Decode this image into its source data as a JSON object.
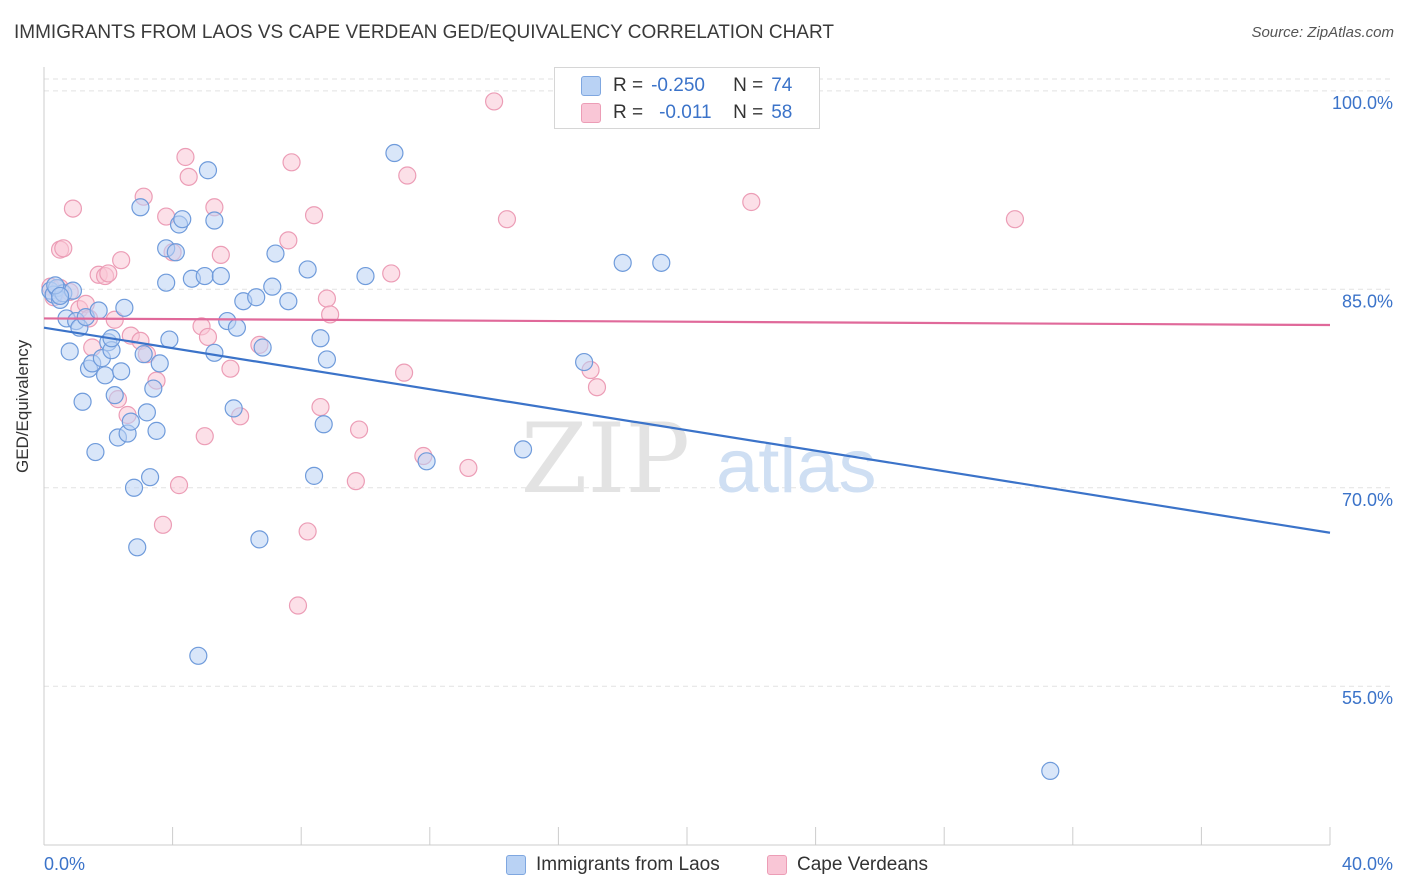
{
  "title": "IMMIGRANTS FROM LAOS VS CAPE VERDEAN GED/EQUIVALENCY CORRELATION CHART",
  "source": "Source: ZipAtlas.com",
  "watermark": {
    "zip": "ZIP",
    "atlas": "atlas"
  },
  "legend": {
    "r_label": "R =",
    "n_label": "N =",
    "rows": [
      {
        "r": "-0.250",
        "n": "74"
      },
      {
        "r": "-0.011",
        "n": "58"
      }
    ]
  },
  "bottom_legend": [
    "Immigrants from Laos",
    "Cape Verdeans"
  ],
  "chart_data": {
    "type": "scatter",
    "title": "IMMIGRANTS FROM LAOS VS CAPE VERDEAN GED/EQUIVALENCY CORRELATION CHART",
    "xlabel": "",
    "ylabel": "GED/Equivalency",
    "xlim": [
      0,
      40
    ],
    "ylim": [
      43,
      101.5
    ],
    "x_tick_labels": [
      "0.0%",
      "40.0%"
    ],
    "y_ticks": [
      55,
      70,
      85,
      100
    ],
    "y_tick_labels": [
      "55.0%",
      "70.0%",
      "85.0%",
      "100.0%"
    ],
    "grid": "horizontal dashed",
    "legend_position": "top-center",
    "colors": {
      "laos": "#3b73c9",
      "cape": "#e0699a",
      "laos_fill": "#b9d2f4",
      "cape_fill": "#f9c6d6"
    },
    "series": [
      {
        "name": "Immigrants from Laos",
        "r": -0.25,
        "n": 74,
        "trend": {
          "x": [
            0,
            40
          ],
          "y": [
            82.1,
            66.6
          ]
        },
        "points": [
          [
            0.2,
            84.9
          ],
          [
            0.3,
            84.6
          ],
          [
            0.4,
            85.1
          ],
          [
            0.5,
            84.2
          ],
          [
            0.6,
            84.7
          ],
          [
            0.7,
            82.8
          ],
          [
            0.8,
            80.3
          ],
          [
            0.9,
            84.9
          ],
          [
            1.0,
            82.6
          ],
          [
            1.1,
            82.1
          ],
          [
            1.2,
            76.5
          ],
          [
            1.3,
            82.9
          ],
          [
            1.4,
            79.0
          ],
          [
            1.5,
            79.4
          ],
          [
            1.6,
            72.7
          ],
          [
            1.7,
            83.4
          ],
          [
            1.8,
            79.8
          ],
          [
            1.9,
            78.5
          ],
          [
            2.0,
            81.0
          ],
          [
            2.1,
            80.4
          ],
          [
            2.2,
            77.0
          ],
          [
            2.3,
            73.8
          ],
          [
            2.4,
            78.8
          ],
          [
            2.5,
            83.6
          ],
          [
            2.6,
            74.1
          ],
          [
            2.7,
            75.0
          ],
          [
            2.8,
            70.0
          ],
          [
            2.9,
            65.5
          ],
          [
            3.0,
            91.2
          ],
          [
            3.1,
            80.1
          ],
          [
            3.2,
            75.7
          ],
          [
            3.3,
            70.8
          ],
          [
            3.4,
            77.5
          ],
          [
            3.5,
            74.3
          ],
          [
            3.6,
            79.4
          ],
          [
            3.8,
            88.1
          ],
          [
            3.8,
            85.5
          ],
          [
            3.9,
            81.2
          ],
          [
            4.1,
            87.8
          ],
          [
            4.2,
            89.9
          ],
          [
            4.3,
            90.3
          ],
          [
            4.6,
            85.8
          ],
          [
            4.8,
            57.3
          ],
          [
            5.0,
            86.0
          ],
          [
            5.1,
            94.0
          ],
          [
            5.3,
            80.2
          ],
          [
            5.3,
            90.2
          ],
          [
            5.5,
            86.0
          ],
          [
            5.7,
            82.6
          ],
          [
            5.9,
            76.0
          ],
          [
            6.0,
            82.1
          ],
          [
            6.2,
            84.1
          ],
          [
            6.6,
            84.4
          ],
          [
            6.8,
            80.6
          ],
          [
            7.1,
            85.2
          ],
          [
            7.2,
            87.7
          ],
          [
            7.6,
            84.1
          ],
          [
            8.2,
            86.5
          ],
          [
            8.4,
            70.9
          ],
          [
            8.6,
            81.3
          ],
          [
            8.7,
            74.8
          ],
          [
            8.8,
            79.7
          ],
          [
            10.0,
            86.0
          ],
          [
            10.9,
            95.3
          ],
          [
            11.9,
            72.0
          ],
          [
            14.9,
            72.9
          ],
          [
            16.8,
            79.5
          ],
          [
            18.0,
            87.0
          ],
          [
            19.2,
            87.0
          ],
          [
            31.3,
            48.6
          ],
          [
            0.35,
            85.3
          ],
          [
            2.1,
            81.3
          ],
          [
            6.7,
            66.1
          ],
          [
            0.5,
            84.5
          ]
        ]
      },
      {
        "name": "Cape Verdeans",
        "r": -0.011,
        "n": 58,
        "trend": {
          "x": [
            0,
            40
          ],
          "y": [
            82.8,
            82.3
          ]
        },
        "points": [
          [
            0.2,
            85.2
          ],
          [
            0.3,
            84.4
          ],
          [
            0.5,
            85.1
          ],
          [
            0.5,
            88.0
          ],
          [
            0.6,
            88.1
          ],
          [
            0.8,
            84.8
          ],
          [
            0.9,
            91.1
          ],
          [
            1.1,
            83.5
          ],
          [
            1.3,
            83.9
          ],
          [
            1.4,
            82.8
          ],
          [
            1.5,
            80.6
          ],
          [
            1.7,
            86.1
          ],
          [
            1.9,
            86.0
          ],
          [
            2.0,
            86.2
          ],
          [
            2.2,
            82.7
          ],
          [
            2.3,
            76.7
          ],
          [
            2.4,
            87.2
          ],
          [
            2.6,
            75.5
          ],
          [
            2.7,
            81.5
          ],
          [
            3.0,
            81.1
          ],
          [
            3.1,
            92.0
          ],
          [
            3.2,
            80.1
          ],
          [
            3.5,
            78.1
          ],
          [
            3.7,
            67.2
          ],
          [
            3.8,
            90.5
          ],
          [
            4.0,
            87.8
          ],
          [
            4.2,
            70.2
          ],
          [
            4.4,
            95.0
          ],
          [
            4.5,
            93.5
          ],
          [
            4.9,
            82.2
          ],
          [
            5.1,
            81.4
          ],
          [
            5.0,
            73.9
          ],
          [
            5.3,
            91.2
          ],
          [
            5.5,
            87.6
          ],
          [
            5.8,
            79.0
          ],
          [
            6.1,
            75.4
          ],
          [
            6.7,
            80.8
          ],
          [
            7.6,
            88.7
          ],
          [
            7.7,
            94.6
          ],
          [
            7.9,
            61.1
          ],
          [
            8.2,
            66.7
          ],
          [
            8.4,
            90.6
          ],
          [
            8.6,
            76.1
          ],
          [
            8.8,
            84.3
          ],
          [
            8.9,
            83.1
          ],
          [
            9.7,
            70.5
          ],
          [
            9.8,
            74.4
          ],
          [
            10.8,
            86.2
          ],
          [
            11.2,
            78.7
          ],
          [
            11.3,
            93.6
          ],
          [
            11.8,
            72.4
          ],
          [
            13.2,
            71.5
          ],
          [
            14.0,
            99.2
          ],
          [
            14.4,
            90.3
          ],
          [
            17.0,
            78.9
          ],
          [
            17.2,
            77.6
          ],
          [
            22.0,
            91.6
          ],
          [
            30.2,
            90.3
          ]
        ]
      }
    ]
  }
}
